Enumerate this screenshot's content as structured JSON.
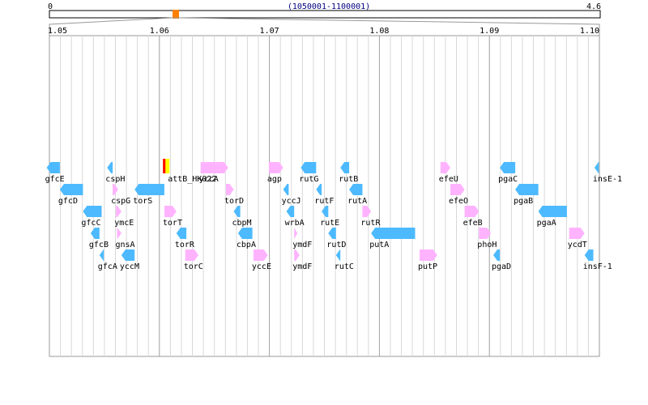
{
  "overview": {
    "start_label": "0",
    "end_label": "4.6",
    "range_label": "(1050001-1100001)",
    "genome_min": 0,
    "genome_max": 4.6,
    "window_start": 1.05,
    "window_end": 1.1,
    "marker_color": "#ff8000"
  },
  "axis": {
    "min": 1.05,
    "max": 1.1,
    "ticks": [
      "1.05",
      "1.06",
      "1.07",
      "1.08",
      "1.09",
      "1.10"
    ],
    "tick_values": [
      1.05,
      1.06,
      1.07,
      1.08,
      1.09,
      1.1
    ],
    "minor_step": 0.001
  },
  "colors": {
    "forward": "#ffb3ff",
    "reverse": "#4dbaff",
    "site_outer": "#ff0000",
    "site_inner": "#ffff00",
    "grid": "#d8d8d8",
    "major_grid": "#a0a0a0"
  },
  "genes": [
    {
      "name": "gfcE",
      "start": 1.04975,
      "end": 1.05095,
      "strand": "-",
      "row": 0
    },
    {
      "name": "gfcD",
      "start": 1.05095,
      "end": 1.05305,
      "strand": "-",
      "row": 1
    },
    {
      "name": "gfcC",
      "start": 1.05305,
      "end": 1.05475,
      "strand": "-",
      "row": 2
    },
    {
      "name": "gfcB",
      "start": 1.05375,
      "end": 1.05455,
      "strand": "-",
      "row": 3
    },
    {
      "name": "gfcA",
      "start": 1.05455,
      "end": 1.05495,
      "strand": "-",
      "row": 4
    },
    {
      "name": "cspH",
      "start": 1.05525,
      "end": 1.05575,
      "strand": "-",
      "row": 0
    },
    {
      "name": "cspG",
      "start": 1.05575,
      "end": 1.05625,
      "strand": "+",
      "row": 1
    },
    {
      "name": "ymcE",
      "start": 1.05605,
      "end": 1.05655,
      "strand": "+",
      "row": 2
    },
    {
      "name": "gnsA",
      "start": 1.05615,
      "end": 1.05655,
      "strand": "+",
      "row": 3
    },
    {
      "name": "yccM",
      "start": 1.05655,
      "end": 1.05775,
      "strand": "-",
      "row": 4
    },
    {
      "name": "torS",
      "start": 1.05775,
      "end": 1.06045,
      "strand": "-",
      "row": 1
    },
    {
      "name": "torT",
      "start": 1.06045,
      "end": 1.06155,
      "strand": "+",
      "row": 2
    },
    {
      "name": "torR",
      "start": 1.06155,
      "end": 1.06245,
      "strand": "-",
      "row": 3
    },
    {
      "name": "torC",
      "start": 1.06235,
      "end": 1.06355,
      "strand": "+",
      "row": 4
    },
    {
      "name": "yccA",
      "start": 1.06375,
      "end": 1.06625,
      "strand": "+",
      "row": 0
    },
    {
      "name": "torD",
      "start": 1.06605,
      "end": 1.06675,
      "strand": "+",
      "row": 1
    },
    {
      "name": "cbpM",
      "start": 1.06675,
      "end": 1.06735,
      "strand": "-",
      "row": 2
    },
    {
      "name": "cbpA",
      "start": 1.06715,
      "end": 1.06845,
      "strand": "-",
      "row": 3
    },
    {
      "name": "yccE",
      "start": 1.06855,
      "end": 1.06985,
      "strand": "+",
      "row": 4
    },
    {
      "name": "agp",
      "start": 1.06995,
      "end": 1.07125,
      "strand": "+",
      "row": 0
    },
    {
      "name": "yccJ",
      "start": 1.07125,
      "end": 1.07175,
      "strand": "-",
      "row": 1
    },
    {
      "name": "wrbA",
      "start": 1.07155,
      "end": 1.07225,
      "strand": "-",
      "row": 2
    },
    {
      "name": "ymdF",
      "start": 1.07225,
      "end": 1.07255,
      "strand": "+",
      "row": 3
    },
    {
      "name": "ymdF",
      "start": 1.07225,
      "end": 1.07275,
      "strand": "+",
      "row": 4
    },
    {
      "name": "rutG",
      "start": 1.07285,
      "end": 1.07425,
      "strand": "-",
      "row": 0
    },
    {
      "name": "rutF",
      "start": 1.07425,
      "end": 1.07475,
      "strand": "-",
      "row": 1
    },
    {
      "name": "rutE",
      "start": 1.07475,
      "end": 1.07535,
      "strand": "-",
      "row": 2
    },
    {
      "name": "rutD",
      "start": 1.07535,
      "end": 1.07605,
      "strand": "-",
      "row": 3
    },
    {
      "name": "rutC",
      "start": 1.07605,
      "end": 1.07645,
      "strand": "-",
      "row": 4
    },
    {
      "name": "rutB",
      "start": 1.07645,
      "end": 1.07725,
      "strand": "-",
      "row": 0
    },
    {
      "name": "rutA",
      "start": 1.07725,
      "end": 1.07845,
      "strand": "-",
      "row": 1
    },
    {
      "name": "rutR",
      "start": 1.07845,
      "end": 1.07925,
      "strand": "+",
      "row": 2
    },
    {
      "name": "putA",
      "start": 1.07925,
      "end": 1.08325,
      "strand": "-",
      "row": 3
    },
    {
      "name": "putP",
      "start": 1.08365,
      "end": 1.08525,
      "strand": "+",
      "row": 4
    },
    {
      "name": "efeU",
      "start": 1.08555,
      "end": 1.08645,
      "strand": "+",
      "row": 0
    },
    {
      "name": "efeO",
      "start": 1.08645,
      "end": 1.08775,
      "strand": "+",
      "row": 1
    },
    {
      "name": "efeB",
      "start": 1.08775,
      "end": 1.08905,
      "strand": "+",
      "row": 2
    },
    {
      "name": "phoH",
      "start": 1.08905,
      "end": 1.09015,
      "strand": "+",
      "row": 3
    },
    {
      "name": "pgaD",
      "start": 1.09035,
      "end": 1.09095,
      "strand": "-",
      "row": 4
    },
    {
      "name": "pgaC",
      "start": 1.09095,
      "end": 1.09235,
      "strand": "-",
      "row": 0
    },
    {
      "name": "pgaB",
      "start": 1.09235,
      "end": 1.09445,
      "strand": "-",
      "row": 1
    },
    {
      "name": "pgaA",
      "start": 1.09445,
      "end": 1.09705,
      "strand": "-",
      "row": 2
    },
    {
      "name": "ycdT",
      "start": 1.09725,
      "end": 1.09865,
      "strand": "+",
      "row": 3
    },
    {
      "name": "insF-1",
      "start": 1.09865,
      "end": 1.09945,
      "strand": "-",
      "row": 4
    },
    {
      "name": "insE-1",
      "start": 1.09955,
      "end": 1.09995,
      "strand": "-",
      "row": 0
    }
  ],
  "site": {
    "name": "attB_HK022",
    "position": 1.0604
  }
}
